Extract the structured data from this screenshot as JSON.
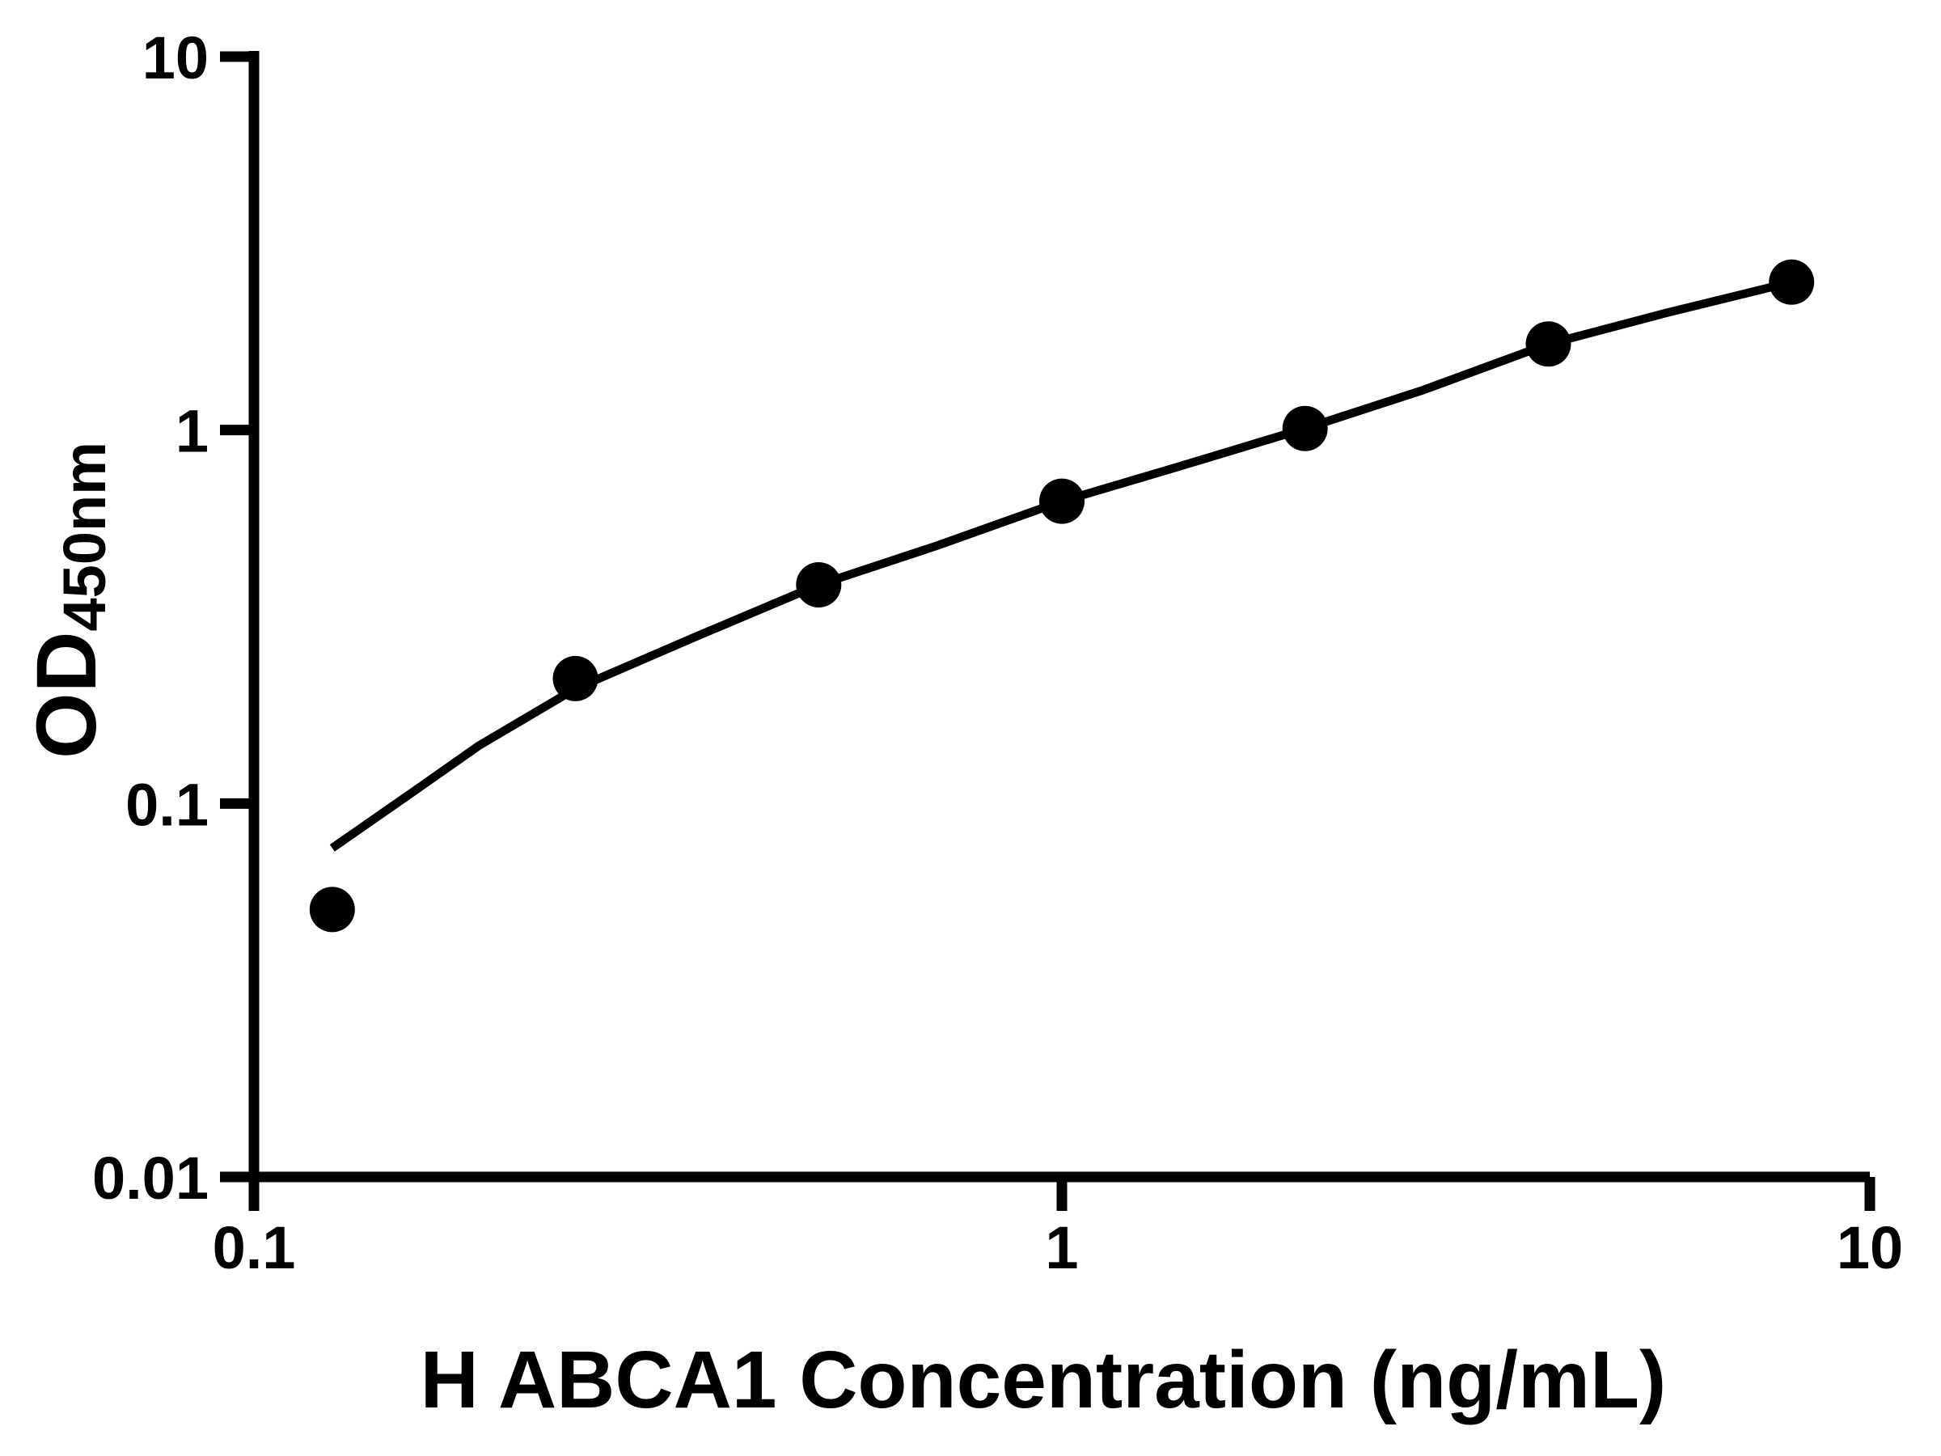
{
  "figure": {
    "background_color": "#ffffff",
    "ink_color": "#000000"
  },
  "chart_data": {
    "type": "scatter",
    "title": "",
    "xlabel": "H ABCA1 Concentration (ng/mL)",
    "ylabel": "OD450nm",
    "ylabel_main": "OD",
    "ylabel_sub": "450nm",
    "x_scale": "log10",
    "y_scale": "log10",
    "xlim": [
      0.1,
      10
    ],
    "ylim": [
      0.01,
      10
    ],
    "grid": false,
    "legend": false,
    "x_ticks": [
      {
        "value": 0.1,
        "label": "0.1"
      },
      {
        "value": 1,
        "label": "1"
      },
      {
        "value": 10,
        "label": "10"
      }
    ],
    "y_ticks": [
      {
        "value": 0.01,
        "label": "0.01"
      },
      {
        "value": 0.1,
        "label": "0.1"
      },
      {
        "value": 1,
        "label": "1"
      },
      {
        "value": 10,
        "label": "10"
      }
    ],
    "series": [
      {
        "name": "standard-data-points",
        "type": "scatter",
        "marker": "filled-circle",
        "marker_radius_px": 28,
        "color": "#000000",
        "points": [
          {
            "x": 0.125,
            "y": 0.052
          },
          {
            "x": 0.25,
            "y": 0.216
          },
          {
            "x": 0.5,
            "y": 0.385
          },
          {
            "x": 1,
            "y": 0.645
          },
          {
            "x": 2,
            "y": 1.01
          },
          {
            "x": 4,
            "y": 1.7
          },
          {
            "x": 8,
            "y": 2.49
          }
        ]
      },
      {
        "name": "fitted-curve",
        "type": "line",
        "stroke_width_px": 10.5,
        "color": "#000000",
        "points": [
          {
            "x": 0.125,
            "y": 0.076
          },
          {
            "x": 0.155,
            "y": 0.105
          },
          {
            "x": 0.19,
            "y": 0.143
          },
          {
            "x": 0.25,
            "y": 0.203
          },
          {
            "x": 0.35,
            "y": 0.278
          },
          {
            "x": 0.5,
            "y": 0.385
          },
          {
            "x": 0.7,
            "y": 0.49
          },
          {
            "x": 1.0,
            "y": 0.645
          },
          {
            "x": 1.4,
            "y": 0.8
          },
          {
            "x": 2.0,
            "y": 1.01
          },
          {
            "x": 2.8,
            "y": 1.28
          },
          {
            "x": 4.0,
            "y": 1.7
          },
          {
            "x": 5.6,
            "y": 2.06
          },
          {
            "x": 8.0,
            "y": 2.49
          }
        ]
      }
    ]
  }
}
